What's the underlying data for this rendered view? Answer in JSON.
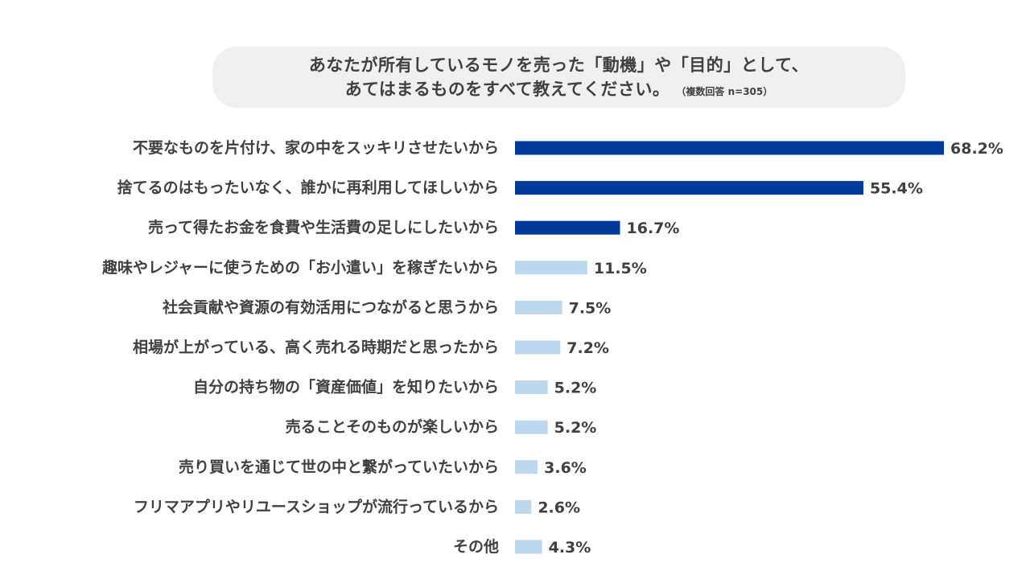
{
  "header": {
    "line1": "あなたが所有しているモノを売った「動機」や「目的」として、",
    "line2": "あてはまるものをすべて教えてください。",
    "note": "（複数回答 n=305）"
  },
  "colors": {
    "highlight": "#003a9b",
    "normal": "#bdd7ee",
    "text": "#404040",
    "title_bg": "#f0f0f0"
  },
  "chart_data": {
    "type": "bar",
    "orientation": "horizontal",
    "title": "あなたが所有しているモノを売った「動機」や「目的」として、あてはまるものをすべて教えてください。",
    "subtitle": "（複数回答 n=305）",
    "categories": [
      "不要なものを片付け、家の中をスッキリさせたいから",
      "捨てるのはもったいなく、誰かに再利用してほしいから",
      "売って得たお金を食費や生活費の足しにしたいから",
      "趣味やレジャーに使うための「お小遣い」を稼ぎたいから",
      "社会貢献や資源の有効活用につながると思うから",
      "相場が上がっている、高く売れる時期だと思ったから",
      "自分の持ち物の「資産価値」を知りたいから",
      "売ることそのものが楽しいから",
      "売り買いを通じて世の中と繋がっていたいから",
      "フリマアプリやリユースショップが流行っているから",
      "その他"
    ],
    "values": [
      68.2,
      55.4,
      16.7,
      11.5,
      7.5,
      7.2,
      5.2,
      5.2,
      3.6,
      2.6,
      4.3
    ],
    "value_labels": [
      "68.2%",
      "55.4%",
      "16.7%",
      "11.5%",
      "7.5%",
      "7.2%",
      "5.2%",
      "5.2%",
      "3.6%",
      "2.6%",
      "4.3%"
    ],
    "highlighted": [
      true,
      true,
      true,
      false,
      false,
      false,
      false,
      false,
      false,
      false,
      false
    ],
    "xlim": [
      0,
      68.2
    ],
    "grid": false,
    "legend": "none"
  }
}
